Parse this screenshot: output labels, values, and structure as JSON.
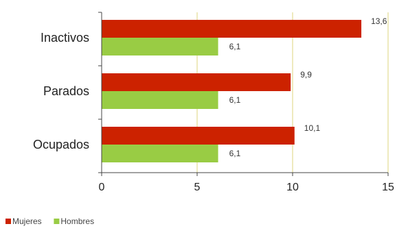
{
  "chart_data": {
    "type": "bar",
    "orientation": "horizontal",
    "categories": [
      "Inactivos",
      "Parados",
      "Ocupados"
    ],
    "series": [
      {
        "name": "Mujeres",
        "color": "#cc2200",
        "values": [
          13.6,
          9.9,
          10.1
        ],
        "labels": [
          "13,6",
          "9,9",
          "10,1"
        ]
      },
      {
        "name": "Hombres",
        "color": "#99cc44",
        "values": [
          6.1,
          6.1,
          6.1
        ],
        "labels": [
          "6,1",
          "6,1",
          "6,1"
        ]
      }
    ],
    "xlim": [
      0,
      15
    ],
    "xticks": [
      0,
      5,
      10,
      15
    ],
    "xtick_labels": [
      "0",
      "5",
      "10",
      "15"
    ],
    "grid": true,
    "grid_color": "#e8e3a8",
    "legend_position": "bottom-left"
  }
}
